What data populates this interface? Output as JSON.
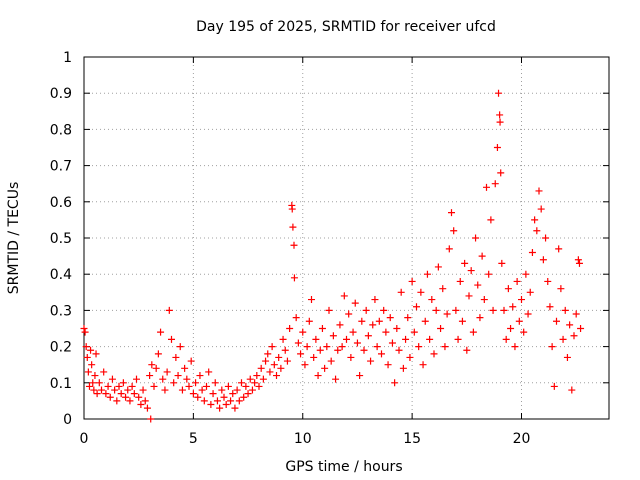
{
  "chart_data": {
    "type": "scatter",
    "title": "Day 195 of 2025, SRMTID for receiver ufcd",
    "xlabel": "GPS time / hours",
    "ylabel": "SRMTID / TECUs",
    "xlim": [
      0,
      24
    ],
    "ylim": [
      0,
      1
    ],
    "grid": true,
    "x_ticks": [
      0,
      5,
      10,
      15,
      20
    ],
    "x_tick_labels": [
      "0",
      "5",
      "10",
      "15",
      "20"
    ],
    "y_ticks": [
      0,
      0.1,
      0.2,
      0.3,
      0.4,
      0.5,
      0.6,
      0.7,
      0.8,
      0.9,
      1
    ],
    "y_tick_labels": [
      "0",
      "0.1",
      "0.2",
      "0.3",
      "0.4",
      "0.5",
      "0.6",
      "0.7",
      "0.8",
      "0.9",
      "1"
    ],
    "marker": "plus",
    "color": "#ff0000",
    "series": [
      {
        "name": "SRMTID",
        "points": [
          [
            0.0,
            0.25
          ],
          [
            0.05,
            0.24
          ],
          [
            0.1,
            0.2
          ],
          [
            0.15,
            0.17
          ],
          [
            0.2,
            0.13
          ],
          [
            0.25,
            0.09
          ],
          [
            0.3,
            0.19
          ],
          [
            0.35,
            0.15
          ],
          [
            0.4,
            0.1
          ],
          [
            0.45,
            0.08
          ],
          [
            0.5,
            0.12
          ],
          [
            0.55,
            0.18
          ],
          [
            0.6,
            0.07
          ],
          [
            0.7,
            0.1
          ],
          [
            0.8,
            0.08
          ],
          [
            0.9,
            0.13
          ],
          [
            1.0,
            0.07
          ],
          [
            1.1,
            0.09
          ],
          [
            1.2,
            0.06
          ],
          [
            1.3,
            0.11
          ],
          [
            1.4,
            0.08
          ],
          [
            1.5,
            0.05
          ],
          [
            1.6,
            0.09
          ],
          [
            1.7,
            0.07
          ],
          [
            1.8,
            0.1
          ],
          [
            1.9,
            0.06
          ],
          [
            2.0,
            0.08
          ],
          [
            2.1,
            0.05
          ],
          [
            2.2,
            0.09
          ],
          [
            2.3,
            0.07
          ],
          [
            2.4,
            0.11
          ],
          [
            2.5,
            0.06
          ],
          [
            2.6,
            0.04
          ],
          [
            2.7,
            0.08
          ],
          [
            2.8,
            0.05
          ],
          [
            2.9,
            0.03
          ],
          [
            3.0,
            0.12
          ],
          [
            3.05,
            0.0
          ],
          [
            3.1,
            0.15
          ],
          [
            3.2,
            0.09
          ],
          [
            3.3,
            0.14
          ],
          [
            3.4,
            0.18
          ],
          [
            3.5,
            0.24
          ],
          [
            3.6,
            0.11
          ],
          [
            3.7,
            0.08
          ],
          [
            3.8,
            0.13
          ],
          [
            3.9,
            0.3
          ],
          [
            4.0,
            0.22
          ],
          [
            4.1,
            0.1
          ],
          [
            4.2,
            0.17
          ],
          [
            4.3,
            0.12
          ],
          [
            4.4,
            0.2
          ],
          [
            4.5,
            0.08
          ],
          [
            4.6,
            0.14
          ],
          [
            4.7,
            0.11
          ],
          [
            4.8,
            0.09
          ],
          [
            4.9,
            0.16
          ],
          [
            5.0,
            0.07
          ],
          [
            5.1,
            0.1
          ],
          [
            5.2,
            0.06
          ],
          [
            5.3,
            0.12
          ],
          [
            5.4,
            0.08
          ],
          [
            5.5,
            0.05
          ],
          [
            5.6,
            0.09
          ],
          [
            5.7,
            0.13
          ],
          [
            5.8,
            0.04
          ],
          [
            5.9,
            0.07
          ],
          [
            6.0,
            0.1
          ],
          [
            6.1,
            0.05
          ],
          [
            6.2,
            0.03
          ],
          [
            6.3,
            0.08
          ],
          [
            6.4,
            0.06
          ],
          [
            6.5,
            0.04
          ],
          [
            6.6,
            0.09
          ],
          [
            6.7,
            0.05
          ],
          [
            6.8,
            0.07
          ],
          [
            6.9,
            0.03
          ],
          [
            7.0,
            0.08
          ],
          [
            7.1,
            0.05
          ],
          [
            7.2,
            0.1
          ],
          [
            7.3,
            0.06
          ],
          [
            7.4,
            0.09
          ],
          [
            7.5,
            0.07
          ],
          [
            7.6,
            0.11
          ],
          [
            7.7,
            0.08
          ],
          [
            7.8,
            0.1
          ],
          [
            7.9,
            0.12
          ],
          [
            8.0,
            0.09
          ],
          [
            8.1,
            0.14
          ],
          [
            8.2,
            0.11
          ],
          [
            8.3,
            0.16
          ],
          [
            8.4,
            0.18
          ],
          [
            8.5,
            0.13
          ],
          [
            8.6,
            0.2
          ],
          [
            8.7,
            0.15
          ],
          [
            8.8,
            0.12
          ],
          [
            8.9,
            0.17
          ],
          [
            9.0,
            0.14
          ],
          [
            9.1,
            0.22
          ],
          [
            9.2,
            0.19
          ],
          [
            9.3,
            0.16
          ],
          [
            9.4,
            0.25
          ],
          [
            9.5,
            0.59
          ],
          [
            9.52,
            0.58
          ],
          [
            9.55,
            0.53
          ],
          [
            9.6,
            0.48
          ],
          [
            9.62,
            0.39
          ],
          [
            9.7,
            0.28
          ],
          [
            9.8,
            0.21
          ],
          [
            9.9,
            0.18
          ],
          [
            10.0,
            0.24
          ],
          [
            10.1,
            0.15
          ],
          [
            10.2,
            0.2
          ],
          [
            10.3,
            0.27
          ],
          [
            10.4,
            0.33
          ],
          [
            10.5,
            0.17
          ],
          [
            10.6,
            0.22
          ],
          [
            10.7,
            0.12
          ],
          [
            10.8,
            0.19
          ],
          [
            10.9,
            0.25
          ],
          [
            11.0,
            0.14
          ],
          [
            11.1,
            0.2
          ],
          [
            11.2,
            0.3
          ],
          [
            11.3,
            0.16
          ],
          [
            11.4,
            0.23
          ],
          [
            11.5,
            0.11
          ],
          [
            11.6,
            0.19
          ],
          [
            11.7,
            0.26
          ],
          [
            11.8,
            0.2
          ],
          [
            11.9,
            0.34
          ],
          [
            12.0,
            0.22
          ],
          [
            12.1,
            0.29
          ],
          [
            12.2,
            0.17
          ],
          [
            12.3,
            0.24
          ],
          [
            12.4,
            0.32
          ],
          [
            12.5,
            0.21
          ],
          [
            12.6,
            0.12
          ],
          [
            12.7,
            0.27
          ],
          [
            12.8,
            0.19
          ],
          [
            12.9,
            0.3
          ],
          [
            13.0,
            0.23
          ],
          [
            13.1,
            0.16
          ],
          [
            13.2,
            0.26
          ],
          [
            13.3,
            0.33
          ],
          [
            13.4,
            0.2
          ],
          [
            13.5,
            0.27
          ],
          [
            13.6,
            0.18
          ],
          [
            13.7,
            0.3
          ],
          [
            13.8,
            0.24
          ],
          [
            13.9,
            0.15
          ],
          [
            14.0,
            0.28
          ],
          [
            14.1,
            0.21
          ],
          [
            14.2,
            0.1
          ],
          [
            14.3,
            0.25
          ],
          [
            14.4,
            0.19
          ],
          [
            14.5,
            0.35
          ],
          [
            14.6,
            0.14
          ],
          [
            14.7,
            0.22
          ],
          [
            14.8,
            0.28
          ],
          [
            14.9,
            0.17
          ],
          [
            15.0,
            0.38
          ],
          [
            15.1,
            0.24
          ],
          [
            15.2,
            0.31
          ],
          [
            15.3,
            0.2
          ],
          [
            15.4,
            0.35
          ],
          [
            15.5,
            0.15
          ],
          [
            15.6,
            0.27
          ],
          [
            15.7,
            0.4
          ],
          [
            15.8,
            0.22
          ],
          [
            15.9,
            0.33
          ],
          [
            16.0,
            0.18
          ],
          [
            16.1,
            0.3
          ],
          [
            16.2,
            0.42
          ],
          [
            16.3,
            0.25
          ],
          [
            16.4,
            0.36
          ],
          [
            16.5,
            0.2
          ],
          [
            16.6,
            0.29
          ],
          [
            16.7,
            0.47
          ],
          [
            16.8,
            0.57
          ],
          [
            16.9,
            0.52
          ],
          [
            17.0,
            0.3
          ],
          [
            17.1,
            0.22
          ],
          [
            17.2,
            0.38
          ],
          [
            17.3,
            0.27
          ],
          [
            17.4,
            0.43
          ],
          [
            17.5,
            0.19
          ],
          [
            17.6,
            0.34
          ],
          [
            17.7,
            0.41
          ],
          [
            17.8,
            0.24
          ],
          [
            17.9,
            0.5
          ],
          [
            18.0,
            0.37
          ],
          [
            18.1,
            0.28
          ],
          [
            18.2,
            0.45
          ],
          [
            18.3,
            0.33
          ],
          [
            18.4,
            0.64
          ],
          [
            18.5,
            0.4
          ],
          [
            18.6,
            0.55
          ],
          [
            18.7,
            0.3
          ],
          [
            18.8,
            0.65
          ],
          [
            18.9,
            0.75
          ],
          [
            18.95,
            0.9
          ],
          [
            19.0,
            0.84
          ],
          [
            19.02,
            0.82
          ],
          [
            19.05,
            0.68
          ],
          [
            19.1,
            0.43
          ],
          [
            19.2,
            0.3
          ],
          [
            19.3,
            0.22
          ],
          [
            19.4,
            0.36
          ],
          [
            19.5,
            0.25
          ],
          [
            19.6,
            0.31
          ],
          [
            19.7,
            0.2
          ],
          [
            19.8,
            0.38
          ],
          [
            19.9,
            0.27
          ],
          [
            20.0,
            0.33
          ],
          [
            20.1,
            0.24
          ],
          [
            20.2,
            0.4
          ],
          [
            20.3,
            0.29
          ],
          [
            20.4,
            0.35
          ],
          [
            20.5,
            0.46
          ],
          [
            20.6,
            0.55
          ],
          [
            20.7,
            0.52
          ],
          [
            20.8,
            0.63
          ],
          [
            20.9,
            0.58
          ],
          [
            21.0,
            0.44
          ],
          [
            21.1,
            0.5
          ],
          [
            21.2,
            0.38
          ],
          [
            21.3,
            0.31
          ],
          [
            21.4,
            0.2
          ],
          [
            21.5,
            0.09
          ],
          [
            21.6,
            0.27
          ],
          [
            21.7,
            0.47
          ],
          [
            21.8,
            0.36
          ],
          [
            21.9,
            0.22
          ],
          [
            22.0,
            0.3
          ],
          [
            22.1,
            0.17
          ],
          [
            22.2,
            0.26
          ],
          [
            22.3,
            0.08
          ],
          [
            22.4,
            0.23
          ],
          [
            22.5,
            0.29
          ],
          [
            22.6,
            0.44
          ],
          [
            22.65,
            0.43
          ],
          [
            22.7,
            0.25
          ]
        ]
      }
    ]
  }
}
